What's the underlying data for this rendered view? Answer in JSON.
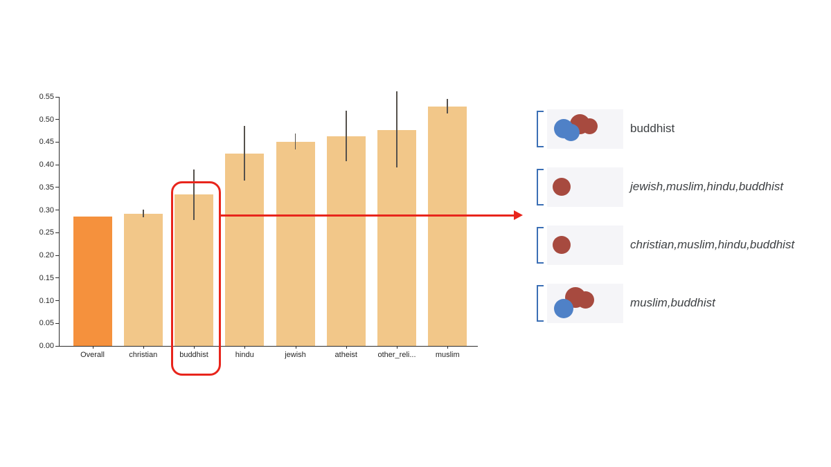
{
  "chart_data": {
    "type": "bar",
    "title": "",
    "xlabel": "",
    "ylabel": "",
    "categories": [
      "Overall",
      "christian",
      "buddhist",
      "hindu",
      "jewish",
      "atheist",
      "other_reli...",
      "muslim"
    ],
    "values": [
      0.285,
      0.292,
      0.335,
      0.425,
      0.451,
      0.463,
      0.477,
      0.528
    ],
    "error_low": [
      0.285,
      0.284,
      0.278,
      0.365,
      0.434,
      0.408,
      0.394,
      0.513
    ],
    "error_high": [
      0.285,
      0.301,
      0.389,
      0.486,
      0.469,
      0.52,
      0.562,
      0.545
    ],
    "ylim": [
      0,
      0.55
    ],
    "ytick_step": 0.05,
    "yticks": [
      "0.00",
      "0.05",
      "0.10",
      "0.15",
      "0.20",
      "0.25",
      "0.30",
      "0.35",
      "0.40",
      "0.45",
      "0.50",
      "0.55"
    ],
    "grid": false,
    "legend": null,
    "bar_color_overall": "#f5913d",
    "bar_color_default": "#f2c789",
    "error_color": "#55514c",
    "highlighted_category": "buddhist"
  },
  "annotation": {
    "color": "#e8251c",
    "highlighted_category": "buddhist"
  },
  "panel": {
    "bracket_color": "#3b6fb5",
    "thumb_bg": "#f5f5f8",
    "text_color": "#3d4043",
    "dot_colors": {
      "blue": "#4f81c7",
      "red": "#a74a3f"
    },
    "rows": [
      {
        "label": "buddhist",
        "italic": false,
        "dots": [
          {
            "c": "red",
            "x": 33,
            "y": 7,
            "d": 29
          },
          {
            "c": "red",
            "x": 50,
            "y": 13,
            "d": 23
          },
          {
            "c": "blue",
            "x": 10,
            "y": 14,
            "d": 28
          },
          {
            "c": "blue",
            "x": 22,
            "y": 21,
            "d": 25
          }
        ]
      },
      {
        "label": "jewish,muslim,hindu,buddhist",
        "italic": true,
        "dots": [
          {
            "c": "red",
            "x": 8,
            "y": 15,
            "d": 26
          }
        ]
      },
      {
        "label": "christian,muslim,hindu,buddhist",
        "italic": true,
        "dots": [
          {
            "c": "red",
            "x": 8,
            "y": 15,
            "d": 26
          }
        ]
      },
      {
        "label": "muslim,buddhist",
        "italic": true,
        "dots": [
          {
            "c": "red",
            "x": 26,
            "y": 5,
            "d": 30
          },
          {
            "c": "red",
            "x": 43,
            "y": 11,
            "d": 25
          },
          {
            "c": "blue",
            "x": 10,
            "y": 22,
            "d": 28
          }
        ]
      }
    ]
  }
}
